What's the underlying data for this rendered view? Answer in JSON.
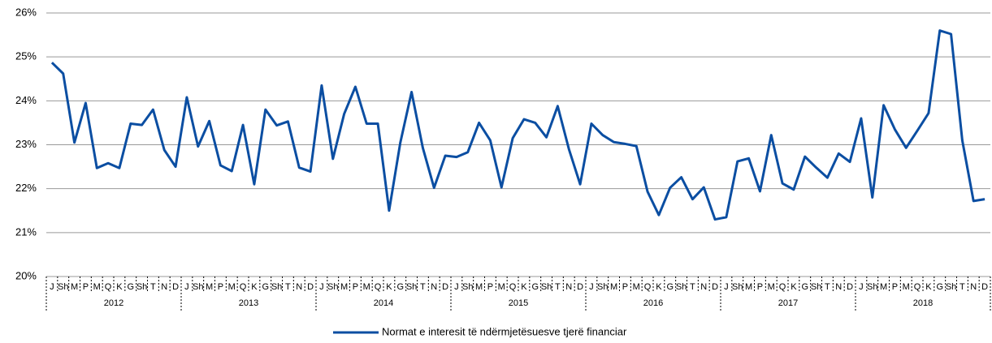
{
  "chart_data": {
    "type": "line",
    "categories": [
      "J",
      "Sh",
      "M",
      "P",
      "M",
      "Q",
      "K",
      "G",
      "Sh",
      "T",
      "N",
      "D",
      "J",
      "Sh",
      "M",
      "P",
      "M",
      "Q",
      "K",
      "G",
      "Sh",
      "T",
      "N",
      "D",
      "J",
      "Sh",
      "M",
      "P",
      "M",
      "Q",
      "K",
      "G",
      "Sh",
      "T",
      "N",
      "D",
      "J",
      "Sh",
      "M",
      "P",
      "M",
      "Q",
      "K",
      "G",
      "Sh",
      "T",
      "N",
      "D",
      "J",
      "Sh",
      "M",
      "P",
      "M",
      "Q",
      "K",
      "G",
      "Sh",
      "T",
      "N",
      "D",
      "J",
      "Sh",
      "M",
      "P",
      "M",
      "Q",
      "K",
      "G",
      "Sh",
      "T",
      "N",
      "D",
      "J",
      "Sh",
      "M",
      "P",
      "M",
      "Q",
      "K",
      "G",
      "Sh",
      "T",
      "N",
      "D"
    ],
    "years": [
      "2012",
      "2013",
      "2014",
      "2015",
      "2016",
      "2017",
      "2018"
    ],
    "series": [
      {
        "name": "Normat e interesit të ndërmjetësuesve tjerë financiar",
        "color": "#0b4ea2",
        "values": [
          24.87,
          24.62,
          23.05,
          23.95,
          22.47,
          22.58,
          22.47,
          23.48,
          23.45,
          23.8,
          22.88,
          22.5,
          24.08,
          22.96,
          23.54,
          22.53,
          22.4,
          23.45,
          22.1,
          23.8,
          23.44,
          23.53,
          22.48,
          22.39,
          24.35,
          22.68,
          23.7,
          24.32,
          23.48,
          23.48,
          21.5,
          23.05,
          24.2,
          22.93,
          22.02,
          22.75,
          22.72,
          22.83,
          23.5,
          23.1,
          22.03,
          23.15,
          23.58,
          23.5,
          23.17,
          23.88,
          22.9,
          22.1,
          23.48,
          23.22,
          23.06,
          23.02,
          22.97,
          21.93,
          21.4,
          22.02,
          22.26,
          21.76,
          22.03,
          21.3,
          21.35,
          22.62,
          22.69,
          21.94,
          23.22,
          22.12,
          21.98,
          22.73,
          22.48,
          22.25,
          22.8,
          22.61,
          23.6,
          21.8,
          23.9,
          23.35,
          22.93,
          23.32,
          23.72,
          25.6,
          25.52,
          23.1,
          21.72,
          21.76
        ]
      }
    ],
    "ylim": [
      20,
      26
    ],
    "yticks": [
      {
        "value": 20,
        "label": "20%"
      },
      {
        "value": 21,
        "label": "21%"
      },
      {
        "value": 22,
        "label": "22%"
      },
      {
        "value": 23,
        "label": "23%"
      },
      {
        "value": 24,
        "label": "24%"
      },
      {
        "value": 25,
        "label": "25%"
      },
      {
        "value": 26,
        "label": "26%"
      }
    ],
    "grid": true,
    "legend": "bottom"
  }
}
